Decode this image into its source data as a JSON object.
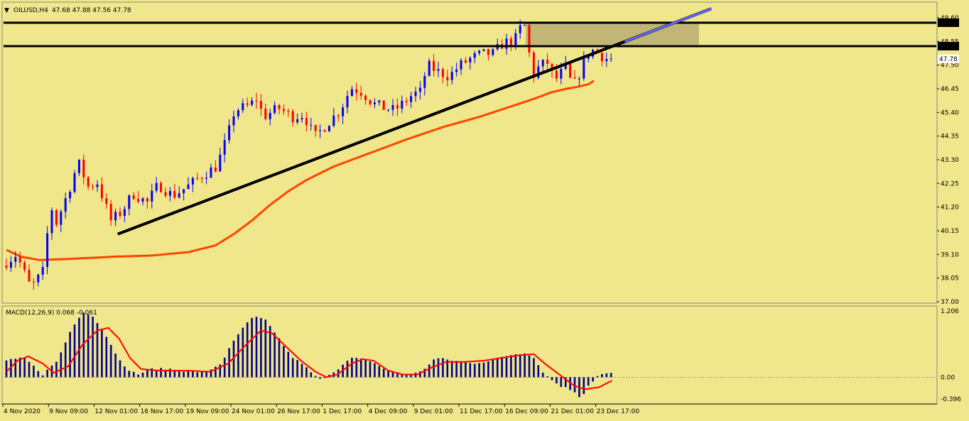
{
  "header": {
    "symbol": "OILUSD,H4",
    "ohlc": "47.68 47.88 47.56 47.78"
  },
  "macd_header": {
    "text": "MACD(12,26,9) 0.068 -0.061"
  },
  "colors": {
    "background": "#f0e68c",
    "bull_candle": "#0000ff",
    "bear_candle": "#ff0000",
    "moving_average": "#ff4500",
    "trendline": "#000000",
    "trendline_extension": "#6a6aff",
    "resistance_zone": "#b8ad72",
    "macd_histogram": "#00008b",
    "macd_signal": "#ff0000"
  },
  "chart_data": [
    {
      "type": "candlestick",
      "title": "OILUSD,H4",
      "ylim": [
        37.0,
        49.6
      ],
      "y_ticks": [
        "49.60",
        "48.55",
        "47.50",
        "46.45",
        "45.40",
        "44.35",
        "43.30",
        "42.25",
        "41.20",
        "40.15",
        "39.10",
        "38.05",
        "37.00"
      ],
      "x_ticks": [
        "4 Nov 2020",
        "9 Nov 09:00",
        "12 Nov 01:00",
        "16 Nov 17:00",
        "19 Nov 09:00",
        "24 Nov 01:00",
        "26 Nov 17:00",
        "1 Dec 17:00",
        "4 Dec 09:00",
        "9 Dec 01:00",
        "11 Dec 17:00",
        "16 Dec 09:00",
        "21 Dec 01:00",
        "23 Dec 17:00"
      ],
      "price_tags": [
        {
          "value": 49.38,
          "label": "49.38"
        },
        {
          "value": 48.34,
          "label": "48.34"
        },
        {
          "value": 47.78,
          "label": "47.78"
        }
      ],
      "horizontal_lines": [
        49.38,
        48.34
      ],
      "resistance_zone": {
        "from": 48.4,
        "to": 49.38,
        "x_start": "16 Dec 2020",
        "x_end": "30 Dec 2020"
      },
      "trendline": {
        "start": {
          "x": "13 Nov 2020",
          "y": 40.0
        },
        "end": {
          "x": "31 Dec 2020",
          "y": 50.0
        },
        "extension_from_x": "24 Dec 2020"
      },
      "moving_average_anchors": [
        [
          0,
          39.3
        ],
        [
          8,
          39.0
        ],
        [
          18,
          38.85
        ],
        [
          35,
          38.9
        ],
        [
          60,
          39.0
        ],
        [
          80,
          39.05
        ],
        [
          100,
          39.2
        ],
        [
          115,
          39.5
        ],
        [
          125,
          40.0
        ],
        [
          135,
          40.6
        ],
        [
          145,
          41.3
        ],
        [
          155,
          41.9
        ],
        [
          165,
          42.4
        ],
        [
          180,
          43.0
        ],
        [
          200,
          43.6
        ],
        [
          220,
          44.2
        ],
        [
          240,
          44.75
        ],
        [
          260,
          45.2
        ],
        [
          275,
          45.6
        ],
        [
          290,
          46.0
        ],
        [
          300,
          46.3
        ],
        [
          308,
          46.45
        ],
        [
          315,
          46.55
        ],
        [
          320,
          46.65
        ],
        [
          323,
          46.8
        ]
      ],
      "candle_anchors": [
        [
          0,
          38.6
        ],
        [
          8,
          39.1
        ],
        [
          16,
          37.6
        ],
        [
          24,
          38.5
        ],
        [
          26,
          41.5
        ],
        [
          30,
          40.5
        ],
        [
          38,
          42.2
        ],
        [
          42,
          43.2
        ],
        [
          48,
          42.0
        ],
        [
          52,
          42.4
        ],
        [
          60,
          40.6
        ],
        [
          66,
          41.0
        ],
        [
          72,
          41.8
        ],
        [
          80,
          41.4
        ],
        [
          86,
          42.2
        ],
        [
          94,
          41.7
        ],
        [
          102,
          42.1
        ],
        [
          110,
          42.6
        ],
        [
          118,
          43.0
        ],
        [
          124,
          44.3
        ],
        [
          128,
          45.5
        ],
        [
          136,
          45.7
        ],
        [
          140,
          46.0
        ],
        [
          144,
          45.2
        ],
        [
          152,
          45.6
        ],
        [
          160,
          45.2
        ],
        [
          166,
          45.3
        ],
        [
          172,
          44.3
        ],
        [
          180,
          45.0
        ],
        [
          186,
          45.5
        ],
        [
          192,
          46.5
        ],
        [
          198,
          46.3
        ],
        [
          204,
          45.8
        ],
        [
          210,
          45.6
        ],
        [
          216,
          45.5
        ],
        [
          222,
          45.9
        ],
        [
          226,
          46.2
        ],
        [
          230,
          46.3
        ],
        [
          234,
          47.5
        ],
        [
          240,
          47.2
        ],
        [
          246,
          47.0
        ],
        [
          252,
          47.5
        ],
        [
          258,
          47.8
        ],
        [
          264,
          48.0
        ],
        [
          270,
          48.0
        ],
        [
          276,
          48.5
        ],
        [
          282,
          48.6
        ],
        [
          286,
          49.3
        ],
        [
          288,
          49.2
        ],
        [
          290,
          48.0
        ],
        [
          292,
          47.0
        ],
        [
          296,
          47.5
        ],
        [
          300,
          47.6
        ],
        [
          304,
          46.8
        ],
        [
          306,
          47.0
        ],
        [
          310,
          47.4
        ],
        [
          314,
          46.5
        ],
        [
          318,
          47.2
        ],
        [
          322,
          48.0
        ],
        [
          326,
          48.2
        ],
        [
          328,
          48.0
        ],
        [
          332,
          47.8
        ],
        [
          333,
          47.78
        ]
      ]
    },
    {
      "type": "histogram",
      "title": "MACD(12,26,9)",
      "macd_value": 0.068,
      "signal_value": -0.061,
      "ylim": [
        -0.396,
        1.206
      ],
      "y_ticks": [
        "1.206",
        "0.00",
        "-0.396"
      ],
      "histogram_anchors": [
        [
          0,
          0.3
        ],
        [
          10,
          0.35
        ],
        [
          20,
          0.05
        ],
        [
          28,
          0.3
        ],
        [
          36,
          0.9
        ],
        [
          42,
          1.2
        ],
        [
          48,
          1.1
        ],
        [
          56,
          0.7
        ],
        [
          64,
          0.2
        ],
        [
          72,
          0.05
        ],
        [
          80,
          0.15
        ],
        [
          90,
          0.15
        ],
        [
          100,
          0.1
        ],
        [
          110,
          0.1
        ],
        [
          118,
          0.25
        ],
        [
          124,
          0.6
        ],
        [
          130,
          0.9
        ],
        [
          136,
          1.1
        ],
        [
          142,
          1.05
        ],
        [
          148,
          0.8
        ],
        [
          156,
          0.4
        ],
        [
          164,
          0.2
        ],
        [
          172,
          -0.05
        ],
        [
          180,
          0.1
        ],
        [
          190,
          0.35
        ],
        [
          200,
          0.3
        ],
        [
          208,
          0.15
        ],
        [
          216,
          0.05
        ],
        [
          222,
          0.05
        ],
        [
          228,
          0.1
        ],
        [
          236,
          0.35
        ],
        [
          246,
          0.3
        ],
        [
          256,
          0.25
        ],
        [
          266,
          0.3
        ],
        [
          276,
          0.4
        ],
        [
          286,
          0.45
        ],
        [
          290,
          0.35
        ],
        [
          296,
          0.05
        ],
        [
          304,
          -0.15
        ],
        [
          312,
          -0.25
        ],
        [
          316,
          -0.38
        ],
        [
          320,
          -0.15
        ],
        [
          326,
          0.05
        ],
        [
          333,
          0.068
        ]
      ],
      "signal_anchors": [
        [
          0,
          0.1
        ],
        [
          6,
          0.3
        ],
        [
          12,
          0.38
        ],
        [
          20,
          0.25
        ],
        [
          26,
          0.08
        ],
        [
          34,
          0.2
        ],
        [
          42,
          0.6
        ],
        [
          50,
          0.85
        ],
        [
          56,
          0.9
        ],
        [
          62,
          0.7
        ],
        [
          68,
          0.35
        ],
        [
          74,
          0.15
        ],
        [
          84,
          0.12
        ],
        [
          100,
          0.12
        ],
        [
          112,
          0.1
        ],
        [
          122,
          0.25
        ],
        [
          132,
          0.6
        ],
        [
          140,
          0.85
        ],
        [
          146,
          0.8
        ],
        [
          154,
          0.55
        ],
        [
          162,
          0.3
        ],
        [
          170,
          0.1
        ],
        [
          176,
          0.0
        ],
        [
          182,
          0.05
        ],
        [
          190,
          0.25
        ],
        [
          196,
          0.33
        ],
        [
          202,
          0.3
        ],
        [
          210,
          0.12
        ],
        [
          218,
          0.05
        ],
        [
          226,
          0.05
        ],
        [
          234,
          0.18
        ],
        [
          242,
          0.28
        ],
        [
          252,
          0.28
        ],
        [
          262,
          0.3
        ],
        [
          272,
          0.35
        ],
        [
          282,
          0.4
        ],
        [
          290,
          0.42
        ],
        [
          296,
          0.25
        ],
        [
          304,
          0.05
        ],
        [
          312,
          -0.15
        ],
        [
          318,
          -0.22
        ],
        [
          326,
          -0.18
        ],
        [
          333,
          -0.061
        ]
      ]
    }
  ]
}
